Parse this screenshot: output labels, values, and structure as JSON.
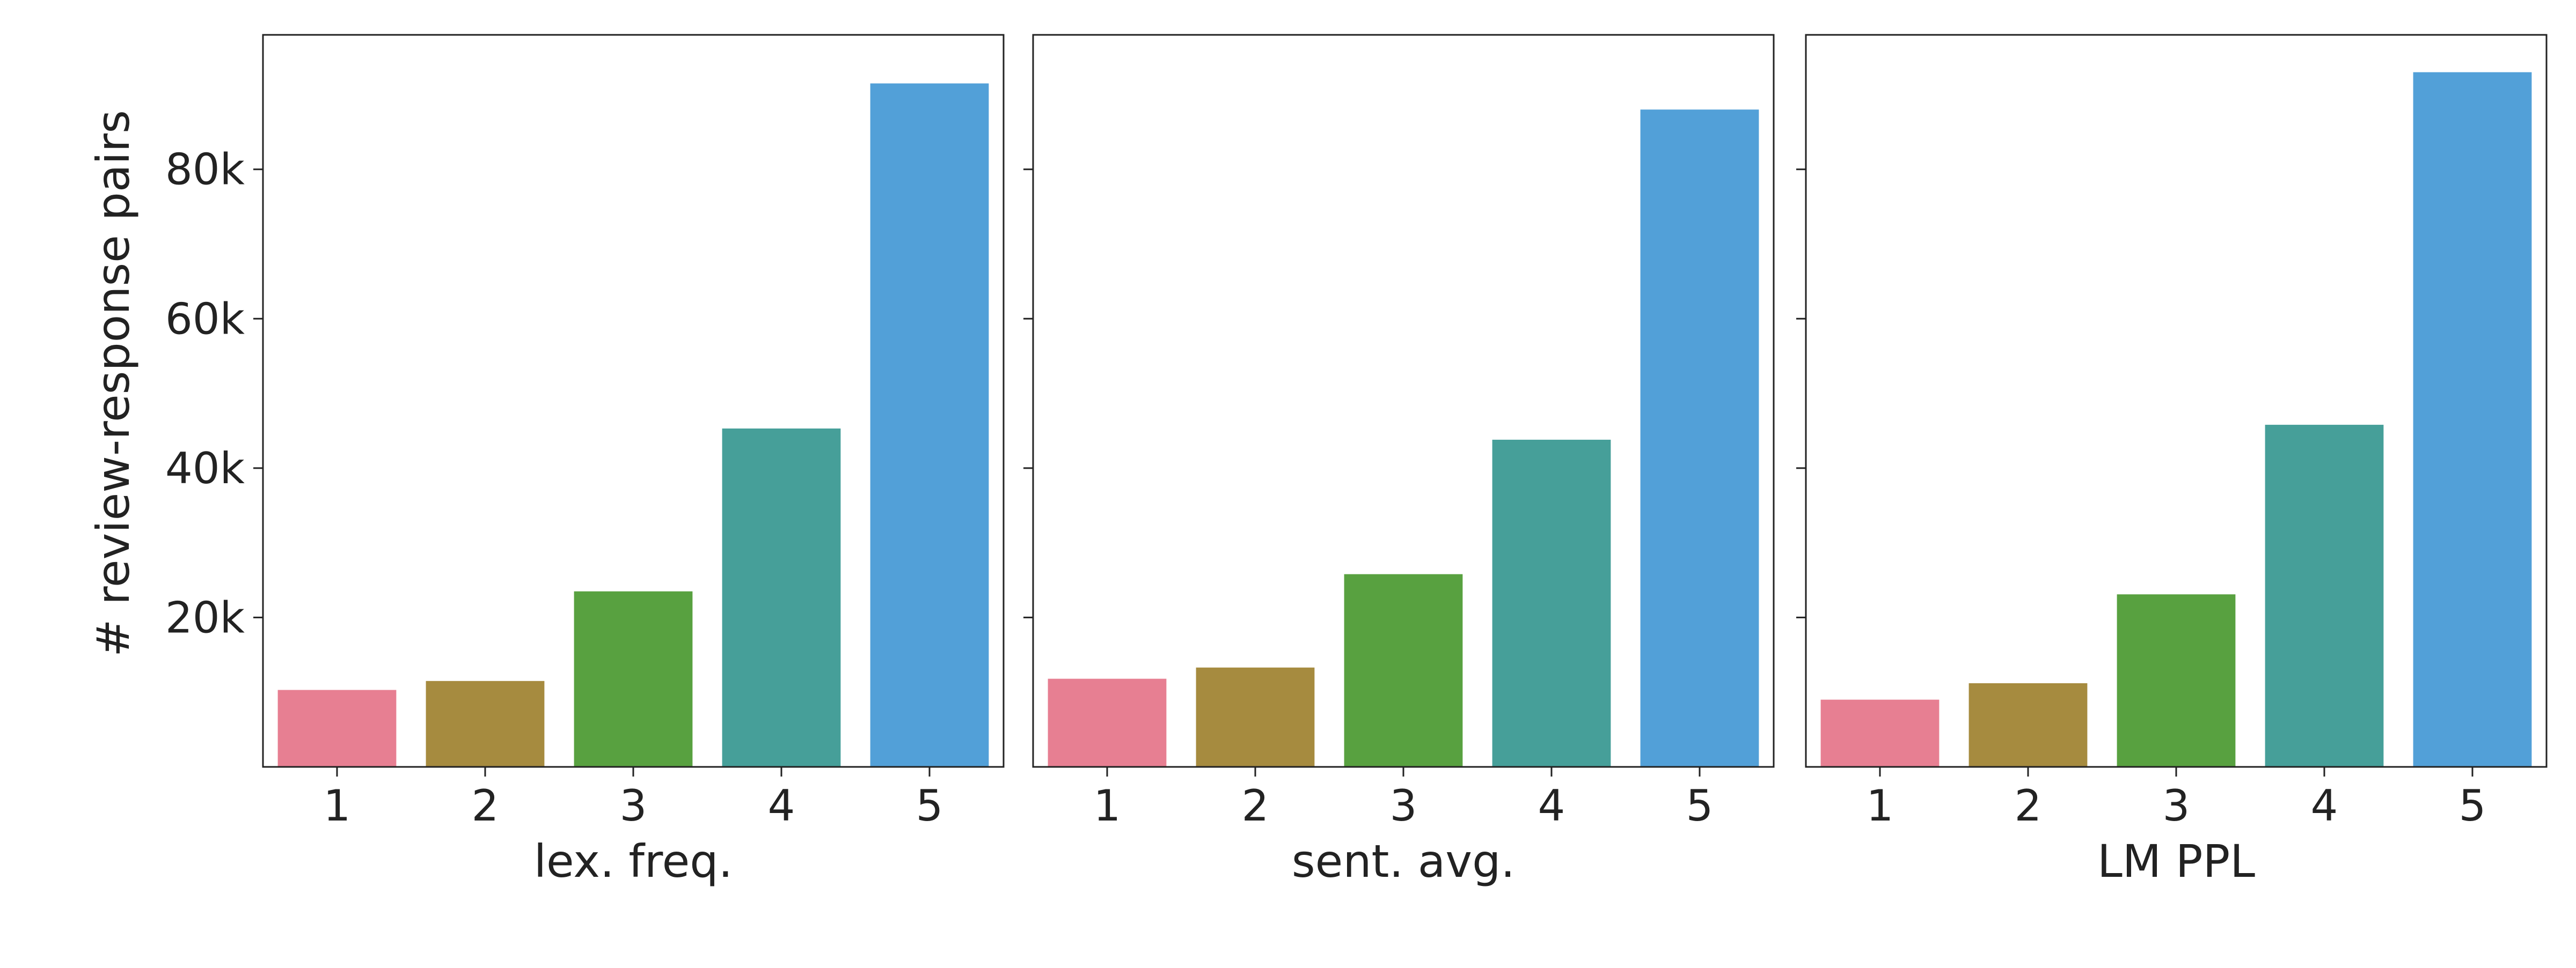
{
  "chart_data": {
    "type": "bar",
    "ylabel": "# review-response pairs",
    "ylim": [
      0,
      98000
    ],
    "yticks": [
      {
        "value": 20000,
        "label": "20k"
      },
      {
        "value": 40000,
        "label": "40k"
      },
      {
        "value": 60000,
        "label": "60k"
      },
      {
        "value": 80000,
        "label": "80k"
      }
    ],
    "categories": [
      "1",
      "2",
      "3",
      "4",
      "5"
    ],
    "colors": [
      "#e77f92",
      "#a68b3f",
      "#58a140",
      "#469f99",
      "#52a0d8"
    ],
    "grid": false,
    "legend": "none",
    "panels": [
      {
        "xlabel": "lex. freq.",
        "values": [
          10300,
          11500,
          23500,
          45300,
          91500
        ]
      },
      {
        "xlabel": "sent. avg.",
        "values": [
          11800,
          13300,
          25800,
          43800,
          88000
        ]
      },
      {
        "xlabel": "LM PPL",
        "values": [
          9000,
          11200,
          23100,
          45800,
          93000
        ]
      }
    ]
  }
}
